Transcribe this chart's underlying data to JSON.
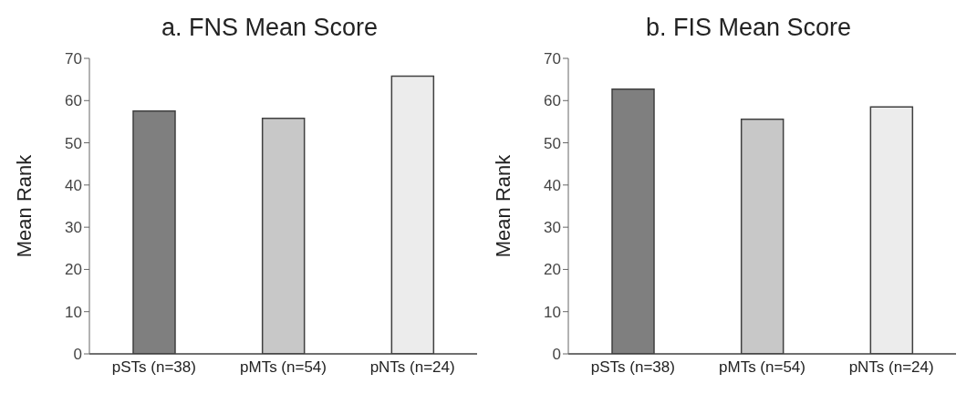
{
  "chart_data": [
    {
      "type": "bar",
      "title": "a. FNS Mean Score",
      "ylabel": "Mean Rank",
      "categories": [
        "pSTs (n=38)",
        "pMTs (n=54)",
        "pNTs (n=24)"
      ],
      "values": [
        57.5,
        55.8,
        65.8
      ],
      "colors": [
        "#7f7f7f",
        "#c8c8c8",
        "#ececec"
      ],
      "ylim": [
        0,
        70
      ],
      "yticks": [
        0,
        10,
        20,
        30,
        40,
        50,
        60,
        70
      ],
      "grid": false,
      "legend": false
    },
    {
      "type": "bar",
      "title": "b. FIS Mean Score",
      "ylabel": "Mean Rank",
      "categories": [
        "pSTs (n=38)",
        "pMTs (n=54)",
        "pNTs (n=24)"
      ],
      "values": [
        62.7,
        55.6,
        58.5
      ],
      "colors": [
        "#7f7f7f",
        "#c8c8c8",
        "#ececec"
      ],
      "ylim": [
        0,
        70
      ],
      "yticks": [
        0,
        10,
        20,
        30,
        40,
        50,
        60,
        70
      ],
      "grid": false,
      "legend": false
    }
  ]
}
